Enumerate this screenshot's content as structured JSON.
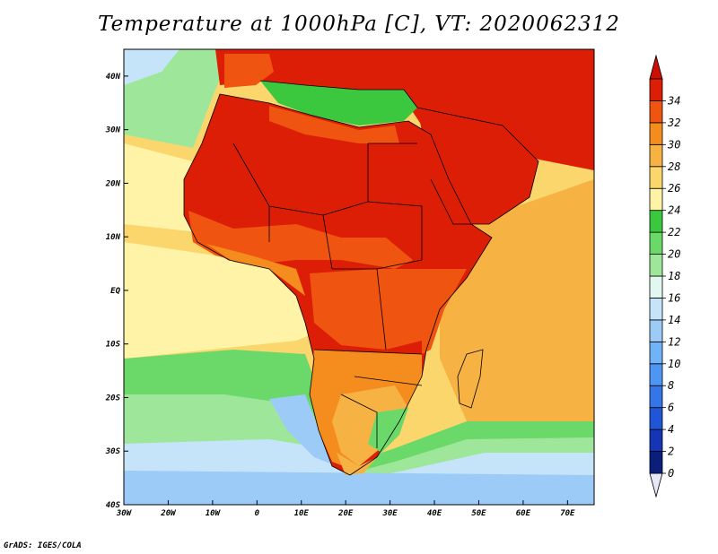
{
  "title": "Temperature at 1000hPa [C], VT: 2020062312",
  "credit": "GrADS: IGES/COLA",
  "map": {
    "lon_range": [
      -30,
      76
    ],
    "lat_range": [
      -40,
      45
    ],
    "lon_ticks": [
      {
        "value": -30,
        "label": "30W"
      },
      {
        "value": -20,
        "label": "20W"
      },
      {
        "value": -10,
        "label": "10W"
      },
      {
        "value": 0,
        "label": "0"
      },
      {
        "value": 10,
        "label": "10E"
      },
      {
        "value": 20,
        "label": "20E"
      },
      {
        "value": 30,
        "label": "30E"
      },
      {
        "value": 40,
        "label": "40E"
      },
      {
        "value": 50,
        "label": "50E"
      },
      {
        "value": 60,
        "label": "60E"
      },
      {
        "value": 70,
        "label": "70E"
      }
    ],
    "lat_ticks": [
      {
        "value": 40,
        "label": "40N"
      },
      {
        "value": 30,
        "label": "30N"
      },
      {
        "value": 20,
        "label": "20N"
      },
      {
        "value": 10,
        "label": "10N"
      },
      {
        "value": 0,
        "label": "EQ"
      },
      {
        "value": -10,
        "label": "10S"
      },
      {
        "value": -20,
        "label": "20S"
      },
      {
        "value": -30,
        "label": "30S"
      },
      {
        "value": -40,
        "label": "40S"
      }
    ]
  },
  "colorbar": {
    "levels": [
      0,
      2,
      4,
      6,
      8,
      10,
      12,
      14,
      16,
      18,
      20,
      22,
      24,
      26,
      28,
      30,
      32,
      34
    ],
    "colors": [
      "#0b1e7a",
      "#1535b4",
      "#1f55d6",
      "#3476e8",
      "#4f95f2",
      "#72b2f6",
      "#9ccbf8",
      "#c5e4fa",
      "#e2f7f0",
      "#9ee79a",
      "#6bd86a",
      "#3cc83e",
      "#fff3a8",
      "#fbd66c",
      "#f7b244",
      "#f48c1e",
      "#ef5410",
      "#dc1e06"
    ],
    "below_color": "#e6e8f8",
    "above_color": "#cc0f03"
  },
  "colors": {
    "ocean_cool": "#9ccbf8",
    "ocean_mid": "#6bd86a",
    "ocean_warm": "#fbd66c",
    "land_hot": "#dc1e06",
    "land_warm": "#ef5410",
    "mediterranean": "#3cc83e"
  }
}
